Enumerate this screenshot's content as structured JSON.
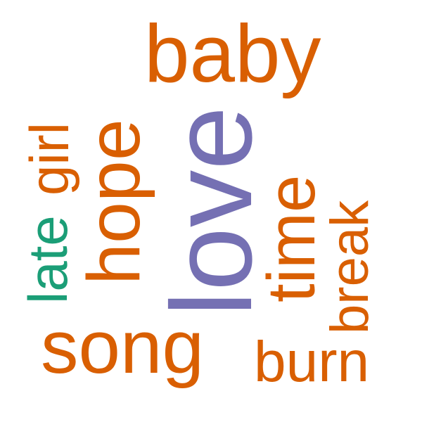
{
  "words": [
    {
      "id": "baby",
      "text": "baby",
      "color": "#d95f02"
    },
    {
      "id": "love",
      "text": "love",
      "color": "#7570b3"
    },
    {
      "id": "hope",
      "text": "hope",
      "color": "#d95f02"
    },
    {
      "id": "girl",
      "text": "girl",
      "color": "#d95f02"
    },
    {
      "id": "late",
      "text": "late",
      "color": "#1b9e77"
    },
    {
      "id": "time",
      "text": "time",
      "color": "#d95f02"
    },
    {
      "id": "break",
      "text": "break",
      "color": "#d95f02"
    },
    {
      "id": "song",
      "text": "song",
      "color": "#d95f02"
    },
    {
      "id": "burn",
      "text": "burn",
      "color": "#d95f02"
    }
  ]
}
